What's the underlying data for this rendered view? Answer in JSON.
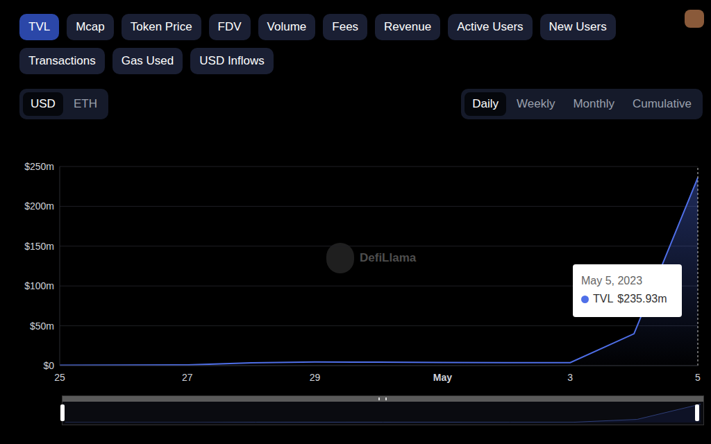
{
  "tabs": {
    "rows": [
      [
        "TVL",
        "Mcap",
        "Token Price",
        "FDV",
        "Volume",
        "Fees",
        "Revenue",
        "Active Users",
        "New Users"
      ],
      [
        "Transactions",
        "Gas Used",
        "USD Inflows"
      ]
    ],
    "active": "TVL"
  },
  "currency": {
    "items": [
      "USD",
      "ETH"
    ],
    "active": "USD"
  },
  "period": {
    "items": [
      "Daily",
      "Weekly",
      "Monthly",
      "Cumulative"
    ],
    "active": "Daily"
  },
  "watermark": "DefiLlama",
  "chart_data": {
    "type": "area",
    "categories": [
      "25",
      null,
      "27",
      null,
      "29",
      null,
      "May",
      null,
      "3",
      null,
      "5"
    ],
    "series": [
      {
        "name": "TVL",
        "color": "#4f6fe8",
        "values": [
          0.5,
          0.6,
          0.8,
          3.5,
          4.5,
          4.3,
          4.0,
          3.8,
          3.7,
          40,
          235.93
        ]
      }
    ],
    "ylim": [
      0,
      250
    ],
    "yticks": [
      {
        "value": 0,
        "label": "$0"
      },
      {
        "value": 50,
        "label": "$50m"
      },
      {
        "value": 100,
        "label": "$100m"
      },
      {
        "value": 150,
        "label": "$150m"
      },
      {
        "value": 200,
        "label": "$200m"
      },
      {
        "value": 250,
        "label": "$250m"
      }
    ],
    "grid": true,
    "tooltip": {
      "date": "May 5, 2023",
      "name": "TVL",
      "value_label": "$235.93m"
    }
  }
}
